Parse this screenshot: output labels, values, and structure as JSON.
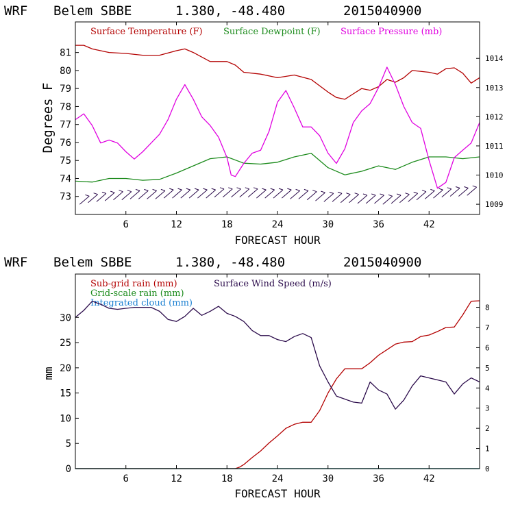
{
  "chart_data": [
    {
      "type": "line",
      "header": {
        "model": "WRF",
        "station": "Belem SBBE",
        "coords": "1.380, -48.480",
        "init": "2015040900"
      },
      "xlabel": "FORECAST HOUR",
      "ylabel": "Degrees F",
      "xlim": [
        0,
        48
      ],
      "xticks": [
        "6",
        "12",
        "18",
        "24",
        "30",
        "36",
        "42"
      ],
      "ylim_left": [
        72,
        82.7
      ],
      "yticks_left": [
        "73",
        "74",
        "75",
        "76",
        "77",
        "78",
        "79",
        "80",
        "81"
      ],
      "ylim_right": [
        1008.65,
        1015.25
      ],
      "yticks_right": [
        "1009",
        "1010",
        "1011",
        "1012",
        "1013",
        "1014"
      ],
      "colors": {
        "temperature": "#b30000",
        "dewpoint": "#1a8a1a",
        "pressure": "#e000e0",
        "wind": "#000000"
      },
      "series": [
        {
          "name": "Surface Temperature (F)",
          "axis": "left",
          "x": [
            0,
            1,
            2,
            4,
            6,
            8,
            10,
            12,
            13,
            14,
            16,
            18,
            19,
            20,
            22,
            24,
            26,
            28,
            30,
            31,
            32,
            33,
            34,
            35,
            36,
            37,
            38,
            39,
            40,
            42,
            43,
            44,
            45,
            46,
            47,
            48
          ],
          "values": [
            81.4,
            81.4,
            81.2,
            81.0,
            80.95,
            80.85,
            80.85,
            81.1,
            81.2,
            81.0,
            80.5,
            80.5,
            80.3,
            79.9,
            79.8,
            79.6,
            79.75,
            79.5,
            78.8,
            78.5,
            78.4,
            78.7,
            79.0,
            78.9,
            79.1,
            79.5,
            79.35,
            79.6,
            80.0,
            79.9,
            79.8,
            80.1,
            80.15,
            79.85,
            79.3,
            79.6
          ]
        },
        {
          "name": "Surface Dewpoint (F)",
          "axis": "left",
          "x": [
            0,
            2,
            4,
            6,
            8,
            10,
            12,
            14,
            16,
            18,
            20,
            22,
            24,
            26,
            28,
            30,
            32,
            34,
            36,
            38,
            40,
            42,
            44,
            46,
            48
          ],
          "values": [
            73.85,
            73.8,
            74.0,
            74.0,
            73.9,
            73.95,
            74.3,
            74.7,
            75.1,
            75.2,
            74.85,
            74.8,
            74.9,
            75.2,
            75.4,
            74.6,
            74.2,
            74.4,
            74.7,
            74.5,
            74.9,
            75.2,
            75.2,
            75.1,
            75.2
          ]
        },
        {
          "name": "Surface Pressure (mb)",
          "axis": "right",
          "x": [
            0,
            1,
            2,
            3,
            4,
            5,
            6,
            7,
            8,
            9,
            10,
            11,
            12,
            13,
            14,
            15,
            16,
            17,
            18,
            18.5,
            19,
            20,
            21,
            22,
            23,
            24,
            25,
            26,
            27,
            28,
            29,
            30,
            31,
            32,
            33,
            34,
            35,
            36,
            37,
            38,
            39,
            40,
            41,
            42,
            43,
            44,
            45,
            46,
            47,
            48
          ],
          "values": [
            1011.9,
            1012.1,
            1011.7,
            1011.1,
            1011.2,
            1011.1,
            1010.8,
            1010.55,
            1010.8,
            1011.1,
            1011.4,
            1011.9,
            1012.6,
            1013.1,
            1012.6,
            1012.0,
            1011.7,
            1011.3,
            1010.6,
            1010.0,
            1009.95,
            1010.4,
            1010.75,
            1010.85,
            1011.5,
            1012.5,
            1012.9,
            1012.3,
            1011.65,
            1011.65,
            1011.35,
            1010.75,
            1010.4,
            1010.9,
            1011.8,
            1012.2,
            1012.45,
            1013.0,
            1013.7,
            1013.1,
            1012.35,
            1011.8,
            1011.6,
            1010.5,
            1009.55,
            1009.75,
            1010.6,
            1010.85,
            1011.1,
            1011.8
          ]
        },
        {
          "name": "Wind barbs",
          "axis": "left",
          "style": "barbs",
          "x": [
            1,
            2,
            3,
            4,
            5,
            6,
            7,
            8,
            9,
            10,
            11,
            12,
            13,
            14,
            15,
            16,
            17,
            18,
            19,
            20,
            21,
            22,
            23,
            24,
            25,
            26,
            27,
            28,
            29,
            30,
            31,
            32,
            33,
            34,
            35,
            36,
            37,
            38,
            39,
            40,
            41,
            42,
            43,
            44,
            45,
            46,
            47
          ],
          "values": [
            72.75,
            72.85,
            72.9,
            72.95,
            73.0,
            73.0,
            73.05,
            73.05,
            73.05,
            73.05,
            73.1,
            73.1,
            73.1,
            73.1,
            73.1,
            73.1,
            73.15,
            73.15,
            73.15,
            73.15,
            73.15,
            73.1,
            73.1,
            73.1,
            73.1,
            73.05,
            73.05,
            73.0,
            72.95,
            72.9,
            72.9,
            72.85,
            72.85,
            72.8,
            72.8,
            72.8,
            72.75,
            72.8,
            72.85,
            72.9,
            73.0,
            73.05,
            73.1,
            73.15,
            73.2,
            73.2,
            73.25
          ]
        }
      ]
    },
    {
      "type": "line",
      "header": {
        "model": "WRF",
        "station": "Belem SBBE",
        "coords": "1.380, -48.480",
        "init": "2015040900"
      },
      "xlabel": "FORECAST HOUR",
      "ylabel": "mm",
      "xlim": [
        0,
        48
      ],
      "xticks": [
        "6",
        "12",
        "18",
        "24",
        "30",
        "36",
        "42"
      ],
      "ylim_left": [
        0,
        38.6
      ],
      "yticks_left": [
        "0",
        "5",
        "10",
        "15",
        "20",
        "25",
        "30"
      ],
      "ylim_right": [
        0,
        9.65
      ],
      "yticks_right": [
        "0",
        "1",
        "2",
        "3",
        "4",
        "5",
        "6",
        "7",
        "8"
      ],
      "colors": {
        "subgrid_rain": "#b30000",
        "gridscale_rain": "#1a8a1a",
        "integrated_cloud": "#1a7fd1",
        "wind": "#2a0a4a"
      },
      "series": [
        {
          "name": "Sub-grid rain (mm)",
          "axis": "left",
          "x": [
            0,
            19,
            19.5,
            20,
            21,
            22,
            23,
            24,
            25,
            26,
            27,
            28,
            29,
            30,
            31,
            32,
            33,
            34,
            35,
            36,
            37,
            38,
            39,
            40,
            41,
            42,
            43,
            44,
            45,
            46,
            47,
            48
          ],
          "values": [
            0,
            0,
            0.3,
            0.8,
            2.2,
            3.5,
            5.1,
            6.5,
            8.0,
            8.8,
            9.2,
            9.2,
            11.5,
            15.0,
            17.8,
            19.8,
            19.8,
            19.8,
            21.0,
            22.5,
            23.6,
            24.7,
            25.1,
            25.2,
            26.2,
            26.5,
            27.2,
            28.0,
            28.1,
            30.5,
            33.2,
            33.3
          ]
        },
        {
          "name": "Grid-scale rain (mm)",
          "axis": "left",
          "x": [
            0,
            48
          ],
          "values": [
            0,
            0
          ]
        },
        {
          "name": "Integrated cloud (mm)",
          "axis": "left",
          "x": [
            0,
            48
          ],
          "values": [
            0,
            0
          ]
        },
        {
          "name": "Surface Wind Speed (m/s)",
          "axis": "right",
          "x": [
            0,
            1,
            2,
            3,
            4,
            5,
            6,
            7,
            8,
            9,
            10,
            11,
            12,
            13,
            14,
            15,
            16,
            17,
            18,
            19,
            20,
            21,
            22,
            23,
            24,
            25,
            26,
            27,
            28,
            29,
            30,
            31,
            32,
            33,
            34,
            35,
            36,
            37,
            38,
            39,
            40,
            41,
            42,
            43,
            44,
            45,
            46,
            47,
            48
          ],
          "values": [
            7.5,
            7.85,
            8.3,
            8.15,
            7.95,
            7.9,
            7.95,
            8.0,
            8.0,
            8.0,
            7.8,
            7.4,
            7.3,
            7.55,
            7.95,
            7.6,
            7.8,
            8.05,
            7.7,
            7.55,
            7.3,
            6.85,
            6.6,
            6.6,
            6.4,
            6.3,
            6.55,
            6.7,
            6.5,
            5.1,
            4.3,
            3.6,
            3.45,
            3.3,
            3.25,
            4.3,
            3.9,
            3.7,
            2.95,
            3.4,
            4.1,
            4.6,
            4.5,
            4.4,
            4.3,
            3.7,
            4.2,
            4.5,
            4.3
          ]
        }
      ]
    }
  ]
}
